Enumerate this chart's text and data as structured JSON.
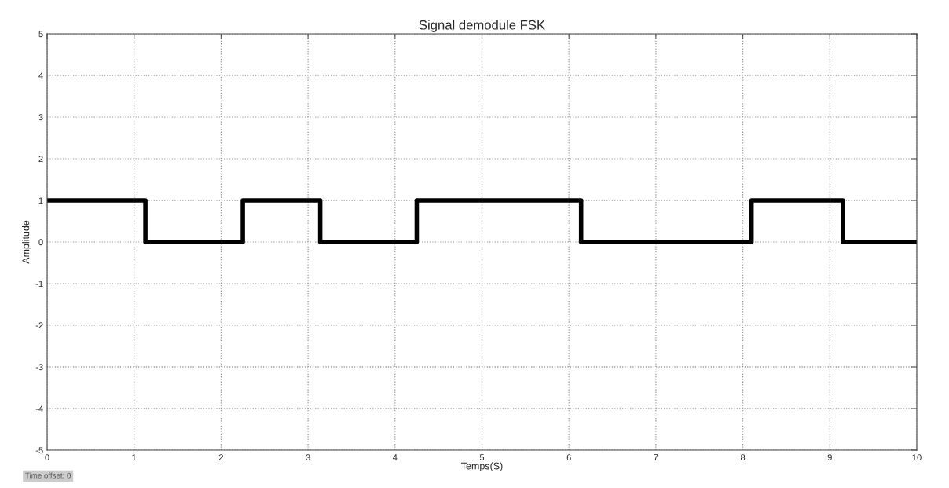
{
  "chart_data": {
    "type": "step",
    "title": "Signal demodule FSK",
    "xlabel": "Temps(S)",
    "ylabel": "Amplitude",
    "series": [
      {
        "color": "#000000",
        "x": [
          0,
          1.13,
          2.25,
          3.14,
          4.25,
          6.14,
          8.1,
          9.15,
          10
        ],
        "values": [
          1,
          0,
          1,
          0,
          1,
          0,
          1,
          0,
          0
        ]
      }
    ],
    "xlim": [
      0,
      10
    ],
    "xticks": [
      0,
      1,
      2,
      3,
      4,
      5,
      6,
      7,
      8,
      9,
      10
    ],
    "ylim": [
      -5,
      5
    ],
    "yticks": [
      -5,
      -4,
      -3,
      -2,
      -1,
      0,
      1,
      2,
      3,
      4,
      5
    ],
    "grid": true,
    "line_style": "solid",
    "annotations": [
      "Time offset: 0"
    ]
  }
}
